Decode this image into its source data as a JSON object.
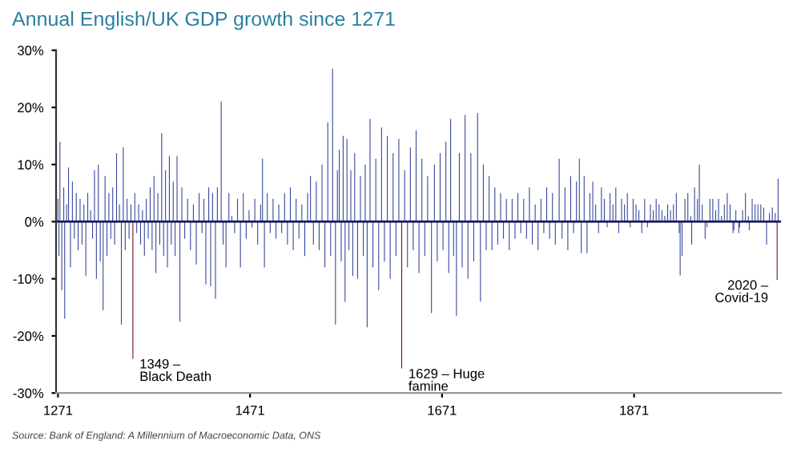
{
  "chart_data": {
    "type": "bar",
    "title": "Annual English/UK GDP growth since 1271",
    "series": [
      {
        "color": "#34449a",
        "x": [
          1271,
          1272,
          1273,
          1275,
          1277,
          1278,
          1280,
          1282,
          1284,
          1286,
          1288,
          1290,
          1292,
          1294,
          1296,
          1298,
          1300,
          1302,
          1305,
          1307,
          1309,
          1311,
          1313,
          1315,
          1318,
          1320,
          1322,
          1324,
          1326,
          1328,
          1330,
          1332,
          1335,
          1337,
          1339,
          1341,
          1343,
          1345,
          1347,
          1351,
          1353,
          1355,
          1357,
          1359,
          1361,
          1363,
          1365,
          1367,
          1369,
          1371,
          1373,
          1375,
          1377,
          1379,
          1381,
          1383,
          1385,
          1387,
          1389,
          1391,
          1393,
          1395,
          1398,
          1400,
          1403,
          1406,
          1409,
          1412,
          1415,
          1418,
          1421,
          1423,
          1425,
          1428,
          1430,
          1432,
          1435,
          1437,
          1441,
          1443,
          1446,
          1449,
          1452,
          1455,
          1458,
          1461,
          1464,
          1467,
          1470,
          1473,
          1476,
          1479,
          1482,
          1484,
          1486,
          1489,
          1492,
          1495,
          1498,
          1501,
          1504,
          1507,
          1510,
          1513,
          1516,
          1519,
          1522,
          1525,
          1528,
          1531,
          1534,
          1537,
          1540,
          1543,
          1546,
          1549,
          1552,
          1555,
          1557,
          1560,
          1562,
          1564,
          1566,
          1568,
          1570,
          1572,
          1574,
          1576,
          1578,
          1580,
          1583,
          1586,
          1589,
          1591,
          1593,
          1596,
          1599,
          1602,
          1605,
          1608,
          1611,
          1614,
          1617,
          1620,
          1623,
          1626,
          1632,
          1635,
          1638,
          1641,
          1644,
          1647,
          1650,
          1653,
          1656,
          1660,
          1663,
          1666,
          1669,
          1672,
          1675,
          1678,
          1680,
          1683,
          1686,
          1689,
          1692,
          1695,
          1698,
          1701,
          1704,
          1708,
          1711,
          1714,
          1717,
          1720,
          1723,
          1726,
          1729,
          1732,
          1735,
          1738,
          1741,
          1744,
          1747,
          1750,
          1753,
          1756,
          1759,
          1762,
          1765,
          1768,
          1771,
          1774,
          1777,
          1780,
          1783,
          1786,
          1789,
          1793,
          1796,
          1799,
          1802,
          1805,
          1808,
          1811,
          1814,
          1816,
          1819,
          1822,
          1825,
          1828,
          1831,
          1834,
          1837,
          1840,
          1843,
          1846,
          1849,
          1852,
          1855,
          1858,
          1861,
          1864,
          1867,
          1870,
          1873,
          1876,
          1879,
          1882,
          1885,
          1888,
          1891,
          1894,
          1897,
          1900,
          1903,
          1906,
          1909,
          1912,
          1915,
          1918,
          1919,
          1921,
          1924,
          1927,
          1930,
          1931,
          1934,
          1937,
          1939,
          1942,
          1945,
          1947,
          1950,
          1953,
          1956,
          1959,
          1962,
          1965,
          1968,
          1971,
          1974,
          1975,
          1977,
          1980,
          1981,
          1984,
          1987,
          1990,
          1991,
          1994,
          1997,
          2000,
          2003,
          2006,
          2009,
          2012,
          2015,
          2018,
          2021
        ],
        "values": [
          4,
          -6,
          14,
          -12,
          6,
          -17,
          3,
          9.5,
          -8,
          7,
          -3,
          5,
          -5,
          4,
          -4,
          3,
          -9.5,
          5,
          2,
          -3,
          9,
          -10,
          10,
          -7,
          -15.5,
          8,
          -6,
          5,
          -3,
          6,
          -4,
          12,
          3,
          -18,
          13,
          -5,
          4,
          -3,
          3,
          5,
          -2,
          3,
          -4,
          2,
          -6,
          4,
          -3,
          6,
          -5,
          8,
          -9,
          5,
          -4,
          15.5,
          -6,
          9,
          -8,
          11.5,
          -4,
          7,
          -6,
          11.5,
          -17.5,
          6,
          -3,
          4,
          -5,
          3,
          -7.5,
          5,
          -2,
          4,
          -11,
          6,
          -11.3,
          5,
          -13.5,
          6,
          21,
          -4,
          -8,
          5,
          1,
          -2,
          4,
          -8,
          5,
          -3,
          2,
          -1,
          4,
          -4,
          3,
          11,
          -8,
          5,
          -2,
          4,
          -3,
          3,
          -2,
          5,
          -4,
          6,
          -5,
          4,
          -3,
          3,
          -6,
          5,
          8,
          -4,
          7,
          -5,
          10,
          -8,
          17.4,
          -6,
          26.8,
          -18,
          9,
          12.6,
          -7,
          15,
          -14,
          14.5,
          -5,
          9,
          -9.5,
          12,
          -10,
          8,
          -6,
          10,
          -18.5,
          18,
          -8,
          11,
          -12,
          16.5,
          -7,
          15,
          -10,
          12,
          -6,
          14.5,
          9,
          -8,
          13,
          -5,
          16,
          -9,
          11,
          -6,
          8,
          -16,
          10,
          -7,
          12,
          -5,
          14,
          -9,
          18,
          -6,
          -16.5,
          12,
          -8,
          18.7,
          -10,
          12,
          -7,
          19,
          -14,
          10,
          -5,
          8,
          -5,
          6,
          -4,
          5,
          -3,
          4,
          -5,
          4,
          -3,
          5,
          -2,
          4,
          -3,
          6,
          -4,
          3,
          -5,
          4,
          -2,
          6,
          -3,
          5,
          -4,
          11,
          -3,
          6,
          -5,
          8,
          -2,
          7,
          11,
          -5.5,
          8,
          -5.5,
          5,
          7,
          3,
          -2,
          6,
          4,
          -1,
          5,
          3,
          6,
          -2,
          4,
          3,
          5,
          -1,
          4,
          3,
          2,
          -2,
          4,
          -1,
          3,
          2,
          4,
          3,
          2,
          1,
          3,
          2,
          3,
          5,
          -2,
          -9.4,
          -6,
          4,
          5,
          1,
          -4,
          6,
          4,
          10,
          3,
          -3,
          -1,
          4,
          4,
          2,
          4,
          1,
          3,
          5,
          3,
          -2,
          -1.5,
          2,
          -2,
          -1,
          2,
          5,
          1,
          -1.5,
          4,
          3,
          3,
          3,
          2.5,
          -4,
          1.5,
          2.5,
          1.5,
          7.5
        ]
      },
      {
        "color": "#6b0f1a",
        "x": [
          1349,
          1629,
          2020
        ],
        "values": [
          -24,
          -25.7,
          -10.2
        ]
      }
    ],
    "xlim": [
      1269,
      2024
    ],
    "xticks": [
      1271,
      1471,
      1671,
      1871
    ],
    "ylim": [
      -30,
      30
    ],
    "yticks": [
      {
        "value": -30,
        "label": "-30%"
      },
      {
        "value": -20,
        "label": "-20%"
      },
      {
        "value": -10,
        "label": "-10%"
      },
      {
        "value": 0,
        "label": "0%"
      },
      {
        "value": 10,
        "label": "10%"
      },
      {
        "value": 20,
        "label": "20%"
      },
      {
        "value": 30,
        "label": "30%"
      }
    ],
    "ref_lines": [
      {
        "axis": "y",
        "value": 0,
        "color": "#1a1f5c"
      }
    ],
    "annotations": [
      {
        "text": "1349 –\nBlack Death",
        "x": 1349,
        "y": -24
      },
      {
        "text": "1629 – Huge\nfamine",
        "x": 1629,
        "y": -25.7
      },
      {
        "text": "2020 –\nCovid-19",
        "x": 2020,
        "y": -10.2
      },
      "Source: Bank of England: A Millennium of Macroeconomic Data, ONS"
    ],
    "grid": false,
    "legend": false
  }
}
